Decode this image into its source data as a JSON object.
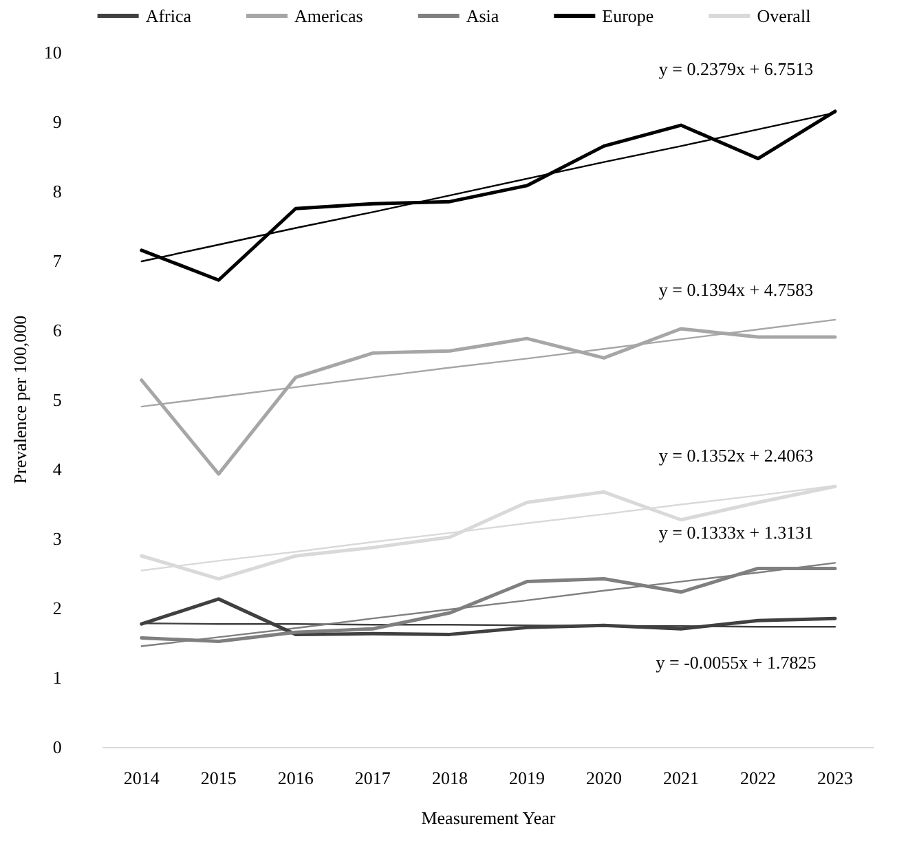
{
  "chart_data": {
    "type": "line",
    "xlabel": "Measurement Year",
    "ylabel": "Prevalence per 100,000",
    "categories": [
      "2014",
      "2015",
      "2016",
      "2017",
      "2018",
      "2019",
      "2020",
      "2021",
      "2022",
      "2023"
    ],
    "ylim": [
      0,
      10
    ],
    "yticks": [
      0,
      1,
      2,
      3,
      4,
      5,
      6,
      7,
      8,
      9,
      10
    ],
    "grid": false,
    "legend": "top",
    "marker": "none",
    "line_style": "solid",
    "series": [
      {
        "name": "Africa",
        "color": "#404040",
        "values": [
          1.77,
          2.13,
          1.62,
          1.63,
          1.62,
          1.72,
          1.75,
          1.7,
          1.82,
          1.85
        ]
      },
      {
        "name": "Americas",
        "color": "#a6a6a6",
        "values": [
          5.28,
          3.93,
          5.32,
          5.67,
          5.7,
          5.88,
          5.6,
          6.02,
          5.9,
          5.9
        ]
      },
      {
        "name": "Asia",
        "color": "#7f7f7f",
        "values": [
          1.57,
          1.52,
          1.65,
          1.7,
          1.93,
          2.38,
          2.42,
          2.23,
          2.57,
          2.57
        ]
      },
      {
        "name": "Europe",
        "color": "#000000",
        "values": [
          7.15,
          6.72,
          7.75,
          7.82,
          7.85,
          8.08,
          8.65,
          8.95,
          8.47,
          9.15
        ]
      },
      {
        "name": "Overall",
        "color": "#d9d9d9",
        "values": [
          2.75,
          2.42,
          2.75,
          2.87,
          3.02,
          3.52,
          3.67,
          3.27,
          3.52,
          3.75
        ]
      },
      {
        "color": "#404040",
        "values": [
          1.78,
          1.77,
          1.77,
          1.76,
          1.76,
          1.75,
          1.74,
          1.74,
          1.73,
          1.73
        ]
      },
      {
        "color": "#a6a6a6",
        "values": [
          4.9,
          5.04,
          5.18,
          5.32,
          5.46,
          5.59,
          5.73,
          5.87,
          6.01,
          6.15
        ]
      },
      {
        "color": "#7f7f7f",
        "values": [
          1.45,
          1.58,
          1.71,
          1.85,
          1.98,
          2.11,
          2.25,
          2.38,
          2.51,
          2.65
        ]
      },
      {
        "color": "#000000",
        "values": [
          6.99,
          7.23,
          7.47,
          7.7,
          7.94,
          8.18,
          8.42,
          8.65,
          8.89,
          9.13
        ]
      },
      {
        "color": "#d9d9d9",
        "values": [
          2.54,
          2.68,
          2.81,
          2.95,
          3.08,
          3.22,
          3.35,
          3.49,
          3.62,
          3.76
        ]
      }
    ],
    "annotations": [
      "y = -0.0055x + 1.7825",
      "y = 0.1394x + 4.7583",
      "y = 0.1333x + 1.3131",
      "y = 0.2379x + 6.7513",
      "y = 0.1352x + 2.4063"
    ]
  }
}
